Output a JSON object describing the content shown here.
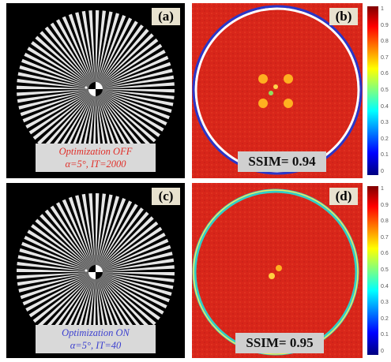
{
  "colors": {
    "caption_off": "#e0302a",
    "caption_on": "#3b3fcf",
    "map_background": "#d8261a"
  },
  "panels": [
    {
      "id": "a",
      "label": "(a)",
      "type": "siemens-star",
      "caption_line1": "Optimization OFF",
      "caption_line2": "α=5°, IT=2000",
      "caption_color": "#e0302a"
    },
    {
      "id": "b",
      "label": "(b)",
      "type": "ssim-map",
      "ssim_text": "SSIM= 0.94",
      "ssim_value": 0.94,
      "colorbar_ticks": [
        "1",
        "0.9",
        "0.8",
        "0.7",
        "0.6",
        "0.5",
        "0.4",
        "0.3",
        "0.2",
        "0.1",
        "0"
      ]
    },
    {
      "id": "c",
      "label": "(c)",
      "type": "siemens-star",
      "caption_line1": "Optimization ON",
      "caption_line2": "α=5°, IT=40",
      "caption_color": "#3b3fcf"
    },
    {
      "id": "d",
      "label": "(d)",
      "type": "ssim-map",
      "ssim_text": "SSIM= 0.95",
      "ssim_value": 0.95,
      "colorbar_ticks": [
        "1",
        "0.9",
        "0.8",
        "0.7",
        "0.6",
        "0.5",
        "0.4",
        "0.3",
        "0.2",
        "0.1",
        "0"
      ]
    }
  ]
}
